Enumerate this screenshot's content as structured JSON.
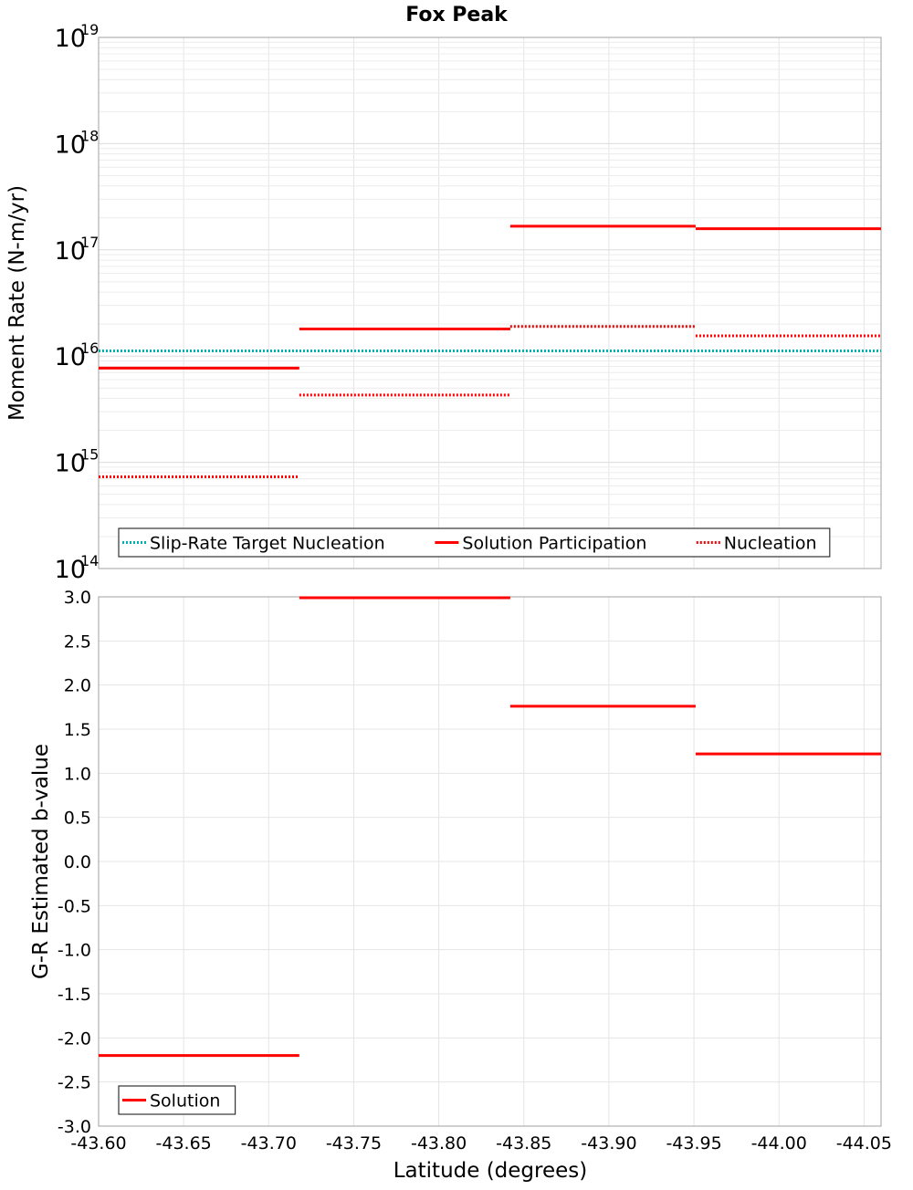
{
  "chart_data": {
    "title": "Fox Peak",
    "xlabel": "Latitude (degrees)",
    "xlim": [
      -43.6,
      -44.06
    ],
    "x_ticks": [
      "-43.60",
      "-43.65",
      "-43.70",
      "-43.75",
      "-43.80",
      "-43.85",
      "-43.90",
      "-43.95",
      "-44.00",
      "-44.05"
    ],
    "subplots": [
      {
        "type": "line",
        "ylabel": "Moment Rate (N-m/yr)",
        "y_scale": "log",
        "ylim": [
          100000000000000.0,
          1e+19
        ],
        "y_ticks": [
          {
            "base": "10",
            "exp": "14"
          },
          {
            "base": "10",
            "exp": "15"
          },
          {
            "base": "10",
            "exp": "16"
          },
          {
            "base": "10",
            "exp": "17"
          },
          {
            "base": "10",
            "exp": "18"
          },
          {
            "base": "10",
            "exp": "19"
          }
        ],
        "grid": true,
        "legend_position": "bottom-left",
        "series": [
          {
            "name": "Slip-Rate Target Nucleation",
            "color": "#00b0b0",
            "style": "dotted",
            "segments": [
              {
                "x0": -43.6,
                "x1": -44.06,
                "y": 1.12e+16
              }
            ]
          },
          {
            "name": "Solution Participation",
            "color": "#ff0000",
            "style": "solid",
            "segments": [
              {
                "x0": -43.6,
                "x1": -43.718,
                "y": 7700000000000000.0
              },
              {
                "x0": -43.718,
                "x1": -43.842,
                "y": 1.8e+16
              },
              {
                "x0": -43.842,
                "x1": -43.951,
                "y": 1.67e+17
              },
              {
                "x0": -43.951,
                "x1": -44.06,
                "y": 1.58e+17
              }
            ]
          },
          {
            "name": "Nucleation",
            "color": "#ff0000",
            "style": "dotted",
            "segments": [
              {
                "x0": -43.6,
                "x1": -43.718,
                "y": 730000000000000.0
              },
              {
                "x0": -43.718,
                "x1": -43.842,
                "y": 4300000000000000.0
              },
              {
                "x0": -43.842,
                "x1": -43.951,
                "y": 1.9e+16
              },
              {
                "x0": -43.951,
                "x1": -44.06,
                "y": 1.55e+16
              }
            ]
          }
        ]
      },
      {
        "type": "line",
        "ylabel": "G-R Estimated b-value",
        "y_scale": "linear",
        "ylim": [
          -3.0,
          3.0
        ],
        "y_ticks": [
          "-3.0",
          "-2.5",
          "-2.0",
          "-1.5",
          "-1.0",
          "-0.5",
          "0.0",
          "0.5",
          "1.0",
          "1.5",
          "2.0",
          "2.5",
          "3.0"
        ],
        "grid": true,
        "legend_position": "bottom-left",
        "series": [
          {
            "name": "Solution",
            "color": "#ff0000",
            "style": "solid",
            "segments": [
              {
                "x0": -43.6,
                "x1": -43.718,
                "y": -2.2
              },
              {
                "x0": -43.718,
                "x1": -43.842,
                "y": 3.0
              },
              {
                "x0": -43.842,
                "x1": -43.951,
                "y": 1.76
              },
              {
                "x0": -43.951,
                "x1": -44.06,
                "y": 1.22
              }
            ]
          }
        ]
      }
    ]
  }
}
